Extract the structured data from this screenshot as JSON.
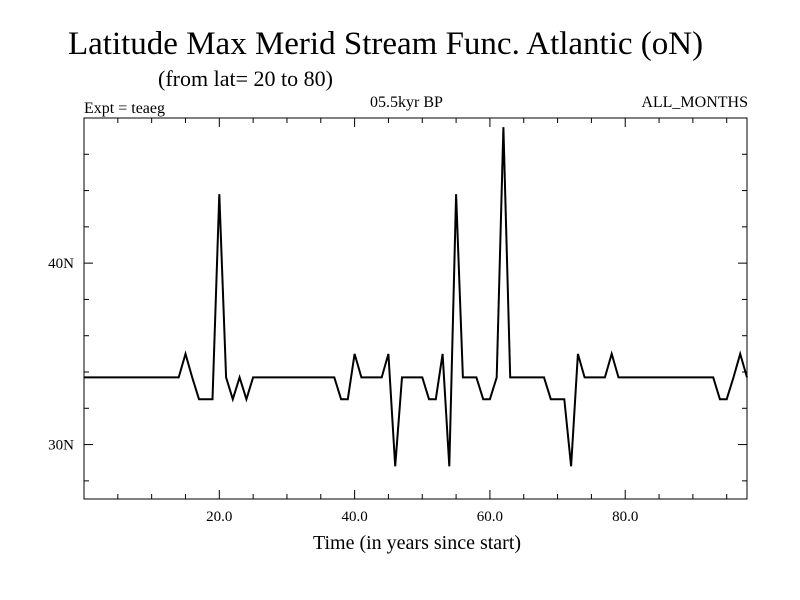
{
  "header": {
    "title": "Latitude Max Merid Stream Func. Atlantic (oN)",
    "subtitle": "(from lat= 20 to 80)",
    "experiment": "Expt = teaeg",
    "period": "05.5kyr BP",
    "months": "ALL_MONTHS"
  },
  "chart_data": {
    "type": "line",
    "title": "Latitude Max Merid Stream Func. Atlantic (oN)",
    "subtitle": "(from lat= 20 to 80)",
    "xlabel": "Time (in years since start)",
    "ylabel": "",
    "xlim": [
      0,
      98
    ],
    "ylim": [
      27,
      48
    ],
    "x_ticks": [
      20,
      40,
      60,
      80
    ],
    "x_tick_labels": [
      "20.0",
      "40.0",
      "60.0",
      "80.0"
    ],
    "y_ticks": [
      30,
      40
    ],
    "y_tick_labels": [
      "30N",
      "40N"
    ],
    "grid": false,
    "line_color": "#000000",
    "series": [
      {
        "x": [
          0,
          1,
          2,
          3,
          4,
          5,
          6,
          7,
          8,
          9,
          10,
          11,
          12,
          13,
          14,
          15,
          16,
          17,
          18,
          19,
          20,
          21,
          22,
          23,
          24,
          25,
          26,
          27,
          28,
          29,
          30,
          31,
          32,
          33,
          34,
          35,
          36,
          37,
          38,
          39,
          40,
          41,
          42,
          43,
          44,
          45,
          46,
          47,
          48,
          49,
          50,
          51,
          52,
          53,
          54,
          55,
          56,
          57,
          58,
          59,
          60,
          61,
          62,
          63,
          64,
          65,
          66,
          67,
          68,
          69,
          70,
          71,
          72,
          73,
          74,
          75,
          76,
          77,
          78,
          79,
          80,
          81,
          82,
          83,
          84,
          85,
          86,
          87,
          88,
          89,
          90,
          91,
          92,
          93,
          94,
          95,
          96,
          97,
          98
        ],
        "values": [
          33.7,
          33.7,
          33.7,
          33.7,
          33.7,
          33.7,
          33.7,
          33.7,
          33.7,
          33.7,
          33.7,
          33.7,
          33.7,
          33.7,
          33.7,
          35.0,
          33.7,
          32.5,
          32.5,
          32.5,
          43.8,
          33.7,
          32.5,
          33.7,
          32.5,
          33.7,
          33.7,
          33.7,
          33.7,
          33.7,
          33.7,
          33.7,
          33.7,
          33.7,
          33.7,
          33.7,
          33.7,
          33.7,
          32.5,
          32.5,
          35.0,
          33.7,
          33.7,
          33.7,
          33.7,
          35.0,
          28.8,
          33.7,
          33.7,
          33.7,
          33.7,
          32.5,
          32.5,
          35.0,
          28.8,
          43.8,
          33.7,
          33.7,
          33.7,
          32.5,
          32.5,
          33.7,
          47.5,
          33.7,
          33.7,
          33.7,
          33.7,
          33.7,
          33.7,
          32.5,
          32.5,
          32.5,
          28.8,
          35.0,
          33.7,
          33.7,
          33.7,
          33.7,
          35.0,
          33.7,
          33.7,
          33.7,
          33.7,
          33.7,
          33.7,
          33.7,
          33.7,
          33.7,
          33.7,
          33.7,
          33.7,
          33.7,
          33.7,
          33.7,
          32.5,
          32.5,
          33.7,
          35.0,
          33.7
        ]
      }
    ]
  }
}
